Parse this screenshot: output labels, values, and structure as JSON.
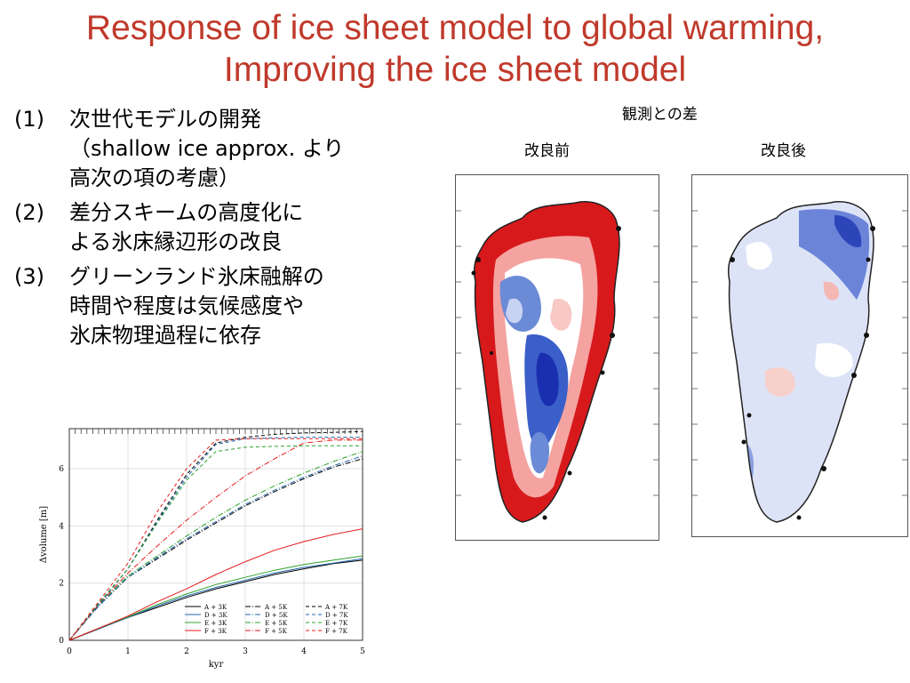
{
  "slide": {
    "title_line1": "Response of ice sheet model to global warming,",
    "title_line2": "Improving the ice sheet model",
    "title_color": "#c0392b",
    "bullets": [
      {
        "num": "(1)",
        "text": "次世代モデルの開発\n（shallow ice approx. より\n高次の項の考慮）"
      },
      {
        "num": "(2)",
        "text": "差分スキームの高度化に\nよる氷床縁辺形の改良"
      },
      {
        "num": "(3)",
        "text": "グリーンランド氷床融解の\n時間や程度は気候感度や\n氷床物理過程に依存"
      }
    ]
  },
  "maps": {
    "heading": "観測との差",
    "left_label": "改良前",
    "right_label": "改良後"
  },
  "chart_data": {
    "type": "line",
    "xlabel": "kyr",
    "ylabel": "Δvolume [m]",
    "xlim": [
      0,
      5
    ],
    "ylim": [
      0,
      7.4
    ],
    "xticks": [
      0,
      1,
      2,
      3,
      4,
      5
    ],
    "yticks": [
      0,
      2,
      4,
      6
    ],
    "legend_position": "bottom-right",
    "series": [
      {
        "name": "A + 3K",
        "color": "#000000",
        "dash": "solid",
        "x": [
          0,
          0.5,
          1,
          1.5,
          2,
          2.5,
          3,
          3.5,
          4,
          4.5,
          5
        ],
        "values": [
          0,
          0.4,
          0.8,
          1.15,
          1.5,
          1.8,
          2.05,
          2.3,
          2.5,
          2.68,
          2.8
        ]
      },
      {
        "name": "D + 3K",
        "color": "#2166ac",
        "dash": "solid",
        "x": [
          0,
          0.5,
          1,
          1.5,
          2,
          2.5,
          3,
          3.5,
          4,
          4.5,
          5
        ],
        "values": [
          0,
          0.4,
          0.8,
          1.2,
          1.55,
          1.85,
          2.1,
          2.35,
          2.55,
          2.7,
          2.85
        ]
      },
      {
        "name": "E + 3K",
        "color": "#2ca02c",
        "dash": "solid",
        "x": [
          0,
          0.5,
          1,
          1.5,
          2,
          2.5,
          3,
          3.5,
          4,
          4.5,
          5
        ],
        "values": [
          0,
          0.42,
          0.82,
          1.25,
          1.62,
          1.95,
          2.2,
          2.45,
          2.65,
          2.8,
          2.95
        ]
      },
      {
        "name": "F + 3K",
        "color": "#e41a1c",
        "dash": "solid",
        "x": [
          0,
          0.5,
          1,
          1.5,
          2,
          2.5,
          3,
          3.5,
          4,
          4.5,
          5
        ],
        "values": [
          0,
          0.42,
          0.85,
          1.35,
          1.8,
          2.3,
          2.75,
          3.15,
          3.45,
          3.7,
          3.9
        ]
      },
      {
        "name": "A + 5K",
        "color": "#000000",
        "dash": "dashdot",
        "x": [
          0,
          0.5,
          1,
          1.5,
          2,
          2.5,
          3,
          3.5,
          4,
          4.5,
          5
        ],
        "values": [
          0,
          1.2,
          2.2,
          2.85,
          3.5,
          4.1,
          4.7,
          5.2,
          5.65,
          6.05,
          6.35
        ]
      },
      {
        "name": "D + 5K",
        "color": "#2166ac",
        "dash": "dashdot",
        "x": [
          0,
          0.5,
          1,
          1.5,
          2,
          2.5,
          3,
          3.5,
          4,
          4.5,
          5
        ],
        "values": [
          0,
          1.2,
          2.2,
          2.9,
          3.55,
          4.15,
          4.75,
          5.25,
          5.7,
          6.1,
          6.45
        ]
      },
      {
        "name": "E + 5K",
        "color": "#2ca02c",
        "dash": "dashdot",
        "x": [
          0,
          0.5,
          1,
          1.5,
          2,
          2.5,
          3,
          3.5,
          4,
          4.5,
          5
        ],
        "values": [
          0,
          1.25,
          2.25,
          2.95,
          3.65,
          4.3,
          4.9,
          5.4,
          5.85,
          6.25,
          6.6
        ]
      },
      {
        "name": "F + 5K",
        "color": "#e41a1c",
        "dash": "dashdot",
        "x": [
          0,
          0.5,
          1,
          1.5,
          2,
          2.5,
          3,
          3.5,
          4,
          4.5,
          5
        ],
        "values": [
          0,
          1.25,
          2.35,
          3.3,
          4.2,
          5.0,
          5.75,
          6.35,
          6.9,
          7.0,
          7.0
        ]
      },
      {
        "name": "A + 7K",
        "color": "#000000",
        "dash": "dashed",
        "x": [
          0,
          0.5,
          1,
          1.5,
          2,
          2.5,
          3,
          3.5,
          4,
          4.5,
          5
        ],
        "values": [
          0,
          1.25,
          2.5,
          4.2,
          5.8,
          6.9,
          7.1,
          7.2,
          7.25,
          7.27,
          7.3
        ]
      },
      {
        "name": "D + 7K",
        "color": "#2166ac",
        "dash": "dashed",
        "x": [
          0,
          0.5,
          1,
          1.5,
          2,
          2.5,
          3,
          3.5,
          4,
          4.5,
          5
        ],
        "values": [
          0,
          1.25,
          2.5,
          4.15,
          5.7,
          6.85,
          7.05,
          7.08,
          7.1,
          7.1,
          7.1
        ]
      },
      {
        "name": "E + 7K",
        "color": "#2ca02c",
        "dash": "dashed",
        "x": [
          0,
          0.5,
          1,
          1.5,
          2,
          2.5,
          3,
          3.5,
          4,
          4.5,
          5
        ],
        "values": [
          0,
          1.3,
          2.5,
          4.1,
          5.6,
          6.6,
          6.75,
          6.78,
          6.8,
          6.8,
          6.8
        ]
      },
      {
        "name": "F + 7K",
        "color": "#e41a1c",
        "dash": "dashed",
        "x": [
          0,
          0.5,
          1,
          1.5,
          2,
          2.5,
          3,
          3.5,
          4,
          4.5,
          5
        ],
        "values": [
          0,
          1.35,
          2.7,
          4.5,
          6.0,
          7.0,
          7.05,
          7.05,
          7.05,
          7.05,
          7.05
        ]
      }
    ]
  }
}
